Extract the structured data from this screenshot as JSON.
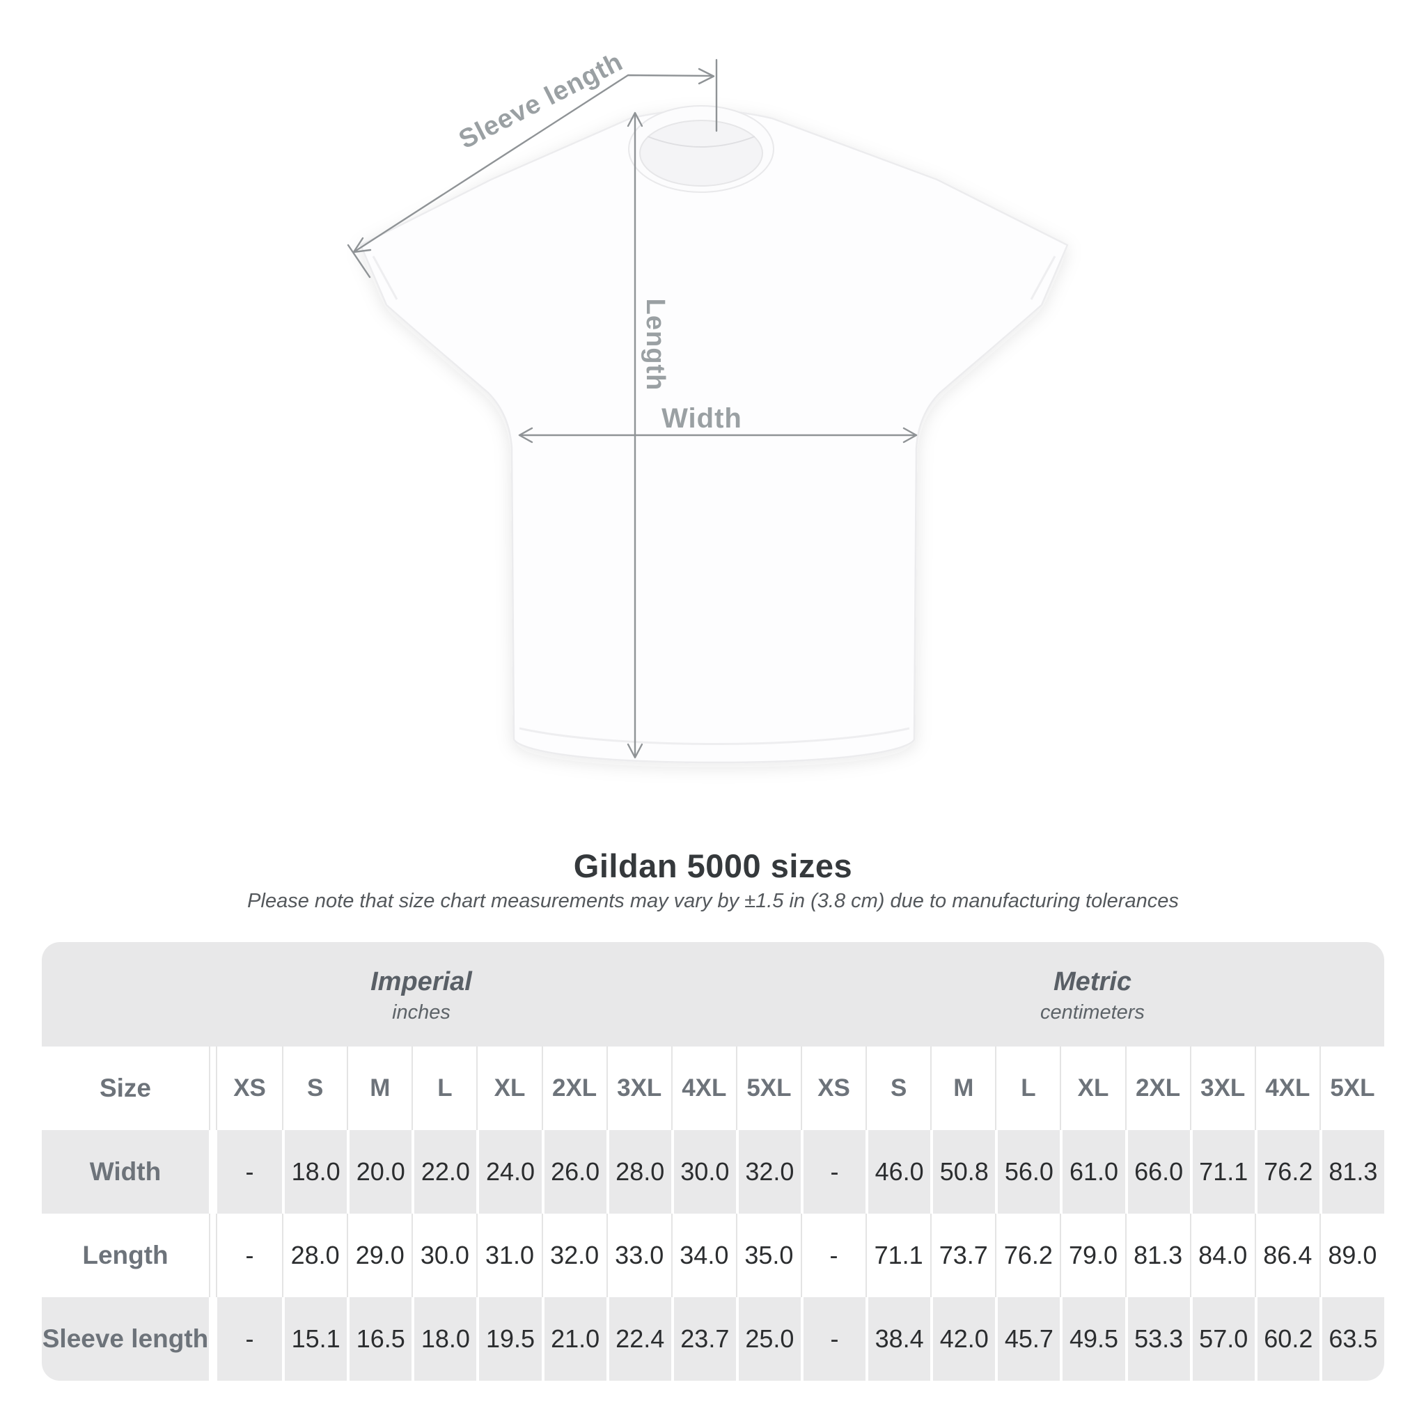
{
  "diagram": {
    "sleeve_length_label": "Sleeve length",
    "length_label": "Length",
    "width_label": "Width",
    "annotation_color": "#8f9396",
    "annotation_label_color": "#9aa0a3"
  },
  "title": "Gildan 5000 sizes",
  "subtitle": "Please note that size chart measurements may vary by ±1.5 in (3.8 cm) due to manufacturing tolerances",
  "table": {
    "sections": [
      {
        "name": "Imperial",
        "unit": "inches"
      },
      {
        "name": "Metric",
        "unit": "centimeters"
      }
    ],
    "size_label": "Size",
    "columns": [
      "XS",
      "S",
      "M",
      "L",
      "XL",
      "2XL",
      "3XL",
      "4XL",
      "5XL",
      "XS",
      "S",
      "M",
      "L",
      "XL",
      "2XL",
      "3XL",
      "4XL",
      "5XL"
    ],
    "rows": [
      {
        "label": "Width",
        "values": [
          "-",
          "18.0",
          "20.0",
          "22.0",
          "24.0",
          "26.0",
          "28.0",
          "30.0",
          "32.0",
          "-",
          "46.0",
          "50.8",
          "56.0",
          "61.0",
          "66.0",
          "71.1",
          "76.2",
          "81.3"
        ]
      },
      {
        "label": "Length",
        "values": [
          "-",
          "28.0",
          "29.0",
          "30.0",
          "31.0",
          "32.0",
          "33.0",
          "34.0",
          "35.0",
          "-",
          "71.1",
          "73.7",
          "76.2",
          "79.0",
          "81.3",
          "84.0",
          "86.4",
          "89.0"
        ]
      },
      {
        "label": "Sleeve length",
        "values": [
          "-",
          "15.1",
          "16.5",
          "18.0",
          "19.5",
          "21.0",
          "22.4",
          "23.7",
          "25.0",
          "-",
          "38.4",
          "42.0",
          "45.7",
          "49.5",
          "53.3",
          "57.0",
          "60.2",
          "63.5"
        ]
      }
    ]
  },
  "colors": {
    "header_band": "#e8e8e9",
    "row_gray": "#e9e9ea",
    "header_text": "#6d737a",
    "value_text": "#2b2d2f",
    "title_text": "#35393c",
    "subtitle_text": "#54585c",
    "annotation": "#8f9396"
  }
}
